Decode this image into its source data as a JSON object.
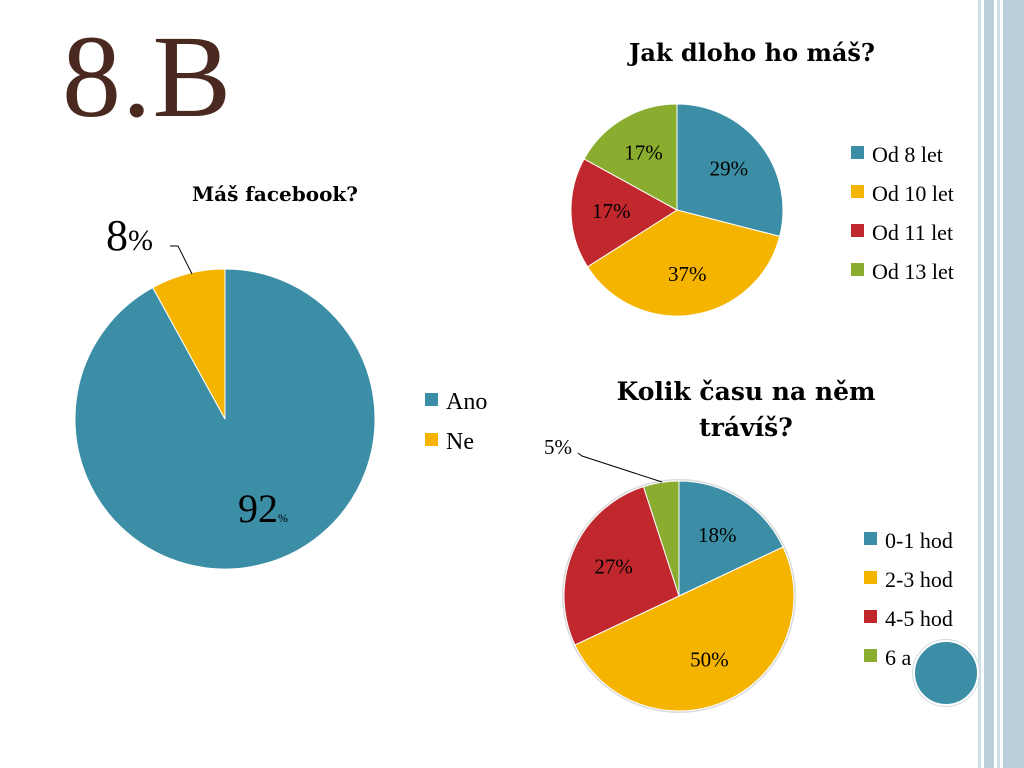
{
  "slide": {
    "title": "8.B"
  },
  "colors": {
    "blue": "#3b8ea5",
    "orange": "#f5b400",
    "red": "#c0282d",
    "green": "#8aac2f",
    "titleBrown": "#4a2a20",
    "stripe": "#b9d0da"
  },
  "chart_data": [
    {
      "type": "pie",
      "title": "Máš facebook?",
      "categories": [
        "Ano",
        "Ne"
      ],
      "values": [
        92,
        8
      ],
      "labels": [
        "92",
        "8"
      ],
      "unit": "%",
      "legend": "right"
    },
    {
      "type": "pie",
      "title": "Jak dloho ho máš?",
      "categories": [
        "Od 8 let",
        "Od 10 let",
        "Od 11 let",
        "Od 13 let"
      ],
      "values": [
        29,
        37,
        17,
        17
      ],
      "labels": [
        "29%",
        "37%",
        "17%",
        "17%"
      ],
      "legend": "right"
    },
    {
      "type": "pie",
      "title": "Kolik času na něm trávíš?",
      "title_lines": [
        "Kolik času na něm",
        "trávíš?"
      ],
      "categories": [
        "0-1 hod",
        "2-3 hod",
        "4-5 hod",
        "6 a více"
      ],
      "values": [
        18,
        50,
        27,
        5
      ],
      "labels": [
        "18%",
        "50%",
        "27%",
        "5%"
      ],
      "legend": "right"
    }
  ]
}
